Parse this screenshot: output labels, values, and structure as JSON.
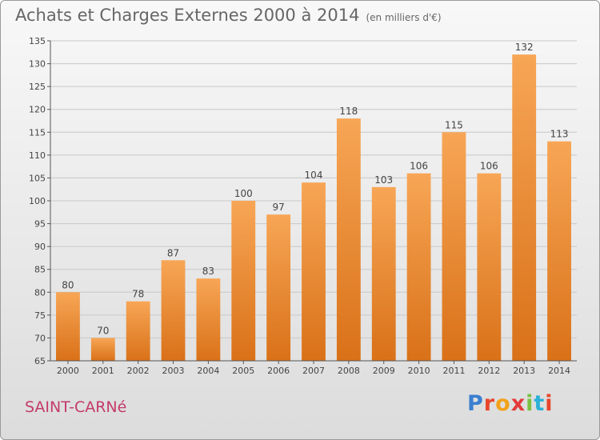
{
  "header": {
    "title": "Achats et Charges Externes 2000 à 2014",
    "subtitle": "(en milliers d'€)"
  },
  "footer": {
    "commune": "SAINT-CARNé",
    "logo_letters": [
      "P",
      "r",
      "o",
      "x",
      "i",
      "t",
      "i"
    ]
  },
  "colors": {
    "bar": "#f5a04a",
    "bar_dark": "#d9731c",
    "grid": "#c8c8c8"
  },
  "chart_data": {
    "type": "bar",
    "title": "Achats et Charges Externes 2000 à 2014",
    "subtitle": "(en milliers d'€)",
    "categories": [
      "2000",
      "2001",
      "2002",
      "2003",
      "2004",
      "2005",
      "2006",
      "2007",
      "2008",
      "2009",
      "2010",
      "2011",
      "2012",
      "2013",
      "2014"
    ],
    "values": [
      80,
      70,
      78,
      87,
      83,
      100,
      97,
      104,
      118,
      103,
      106,
      115,
      106,
      132,
      113
    ],
    "ylim": [
      65,
      135
    ],
    "yticks": [
      65,
      70,
      75,
      80,
      85,
      90,
      95,
      100,
      105,
      110,
      115,
      120,
      125,
      130,
      135
    ],
    "grid": true
  }
}
